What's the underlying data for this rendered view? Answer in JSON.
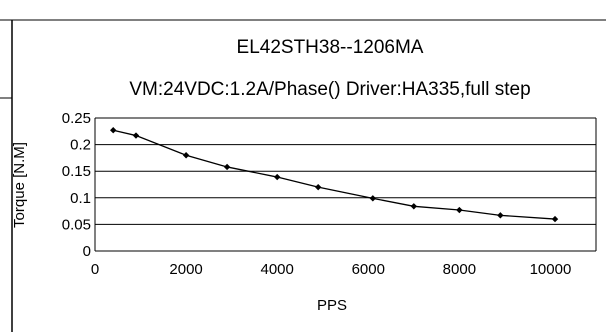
{
  "chart_data": {
    "type": "line",
    "title": "EL42STH38--1206MA",
    "subtitle": "VM:24VDC:1.2A/Phase() Driver:HA335,full step",
    "xlabel": "PPS",
    "ylabel": "Torque [N.M]",
    "xlim": [
      0,
      11000
    ],
    "ylim": [
      0,
      0.25
    ],
    "x_ticks": [
      "0",
      "2000",
      "4000",
      "6000",
      "8000",
      "10000"
    ],
    "y_ticks": [
      "0.25",
      "0.2",
      "0.15",
      "0.1",
      "0.05",
      "0"
    ],
    "grid": "horizontal",
    "series": [
      {
        "x": [
          400,
          900,
          2000,
          2900,
          4000,
          4900,
          6100,
          7000,
          8000,
          8900,
          10100
        ],
        "y": [
          0.227,
          0.217,
          0.18,
          0.158,
          0.139,
          0.12,
          0.099,
          0.084,
          0.077,
          0.067,
          0.06
        ]
      }
    ],
    "colors": {
      "line": "#000000",
      "grid": "#000000",
      "frame": "#000000"
    }
  }
}
